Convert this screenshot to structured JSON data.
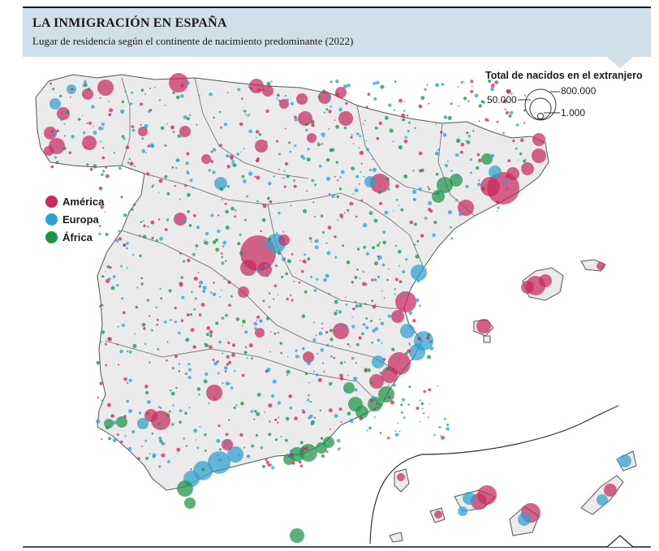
{
  "header": {
    "title": "LA INMIGRACIÓN EN ESPAÑA",
    "subtitle": "Lugar de residencia según el continente de nacimiento predominante (2022)"
  },
  "legend": {
    "items": [
      {
        "label": "América",
        "color": "#c8285e"
      },
      {
        "label": "Europa",
        "color": "#2e9fd0"
      },
      {
        "label": "África",
        "color": "#1a9447"
      }
    ]
  },
  "size_legend": {
    "title": "Total de nacidos en el extranjero",
    "large": "800.000",
    "medium": "50.000",
    "small": "1.000"
  },
  "colors": {
    "land": "#ebebeb",
    "border": "#555555",
    "header_bg": "#cfe0ea"
  }
}
